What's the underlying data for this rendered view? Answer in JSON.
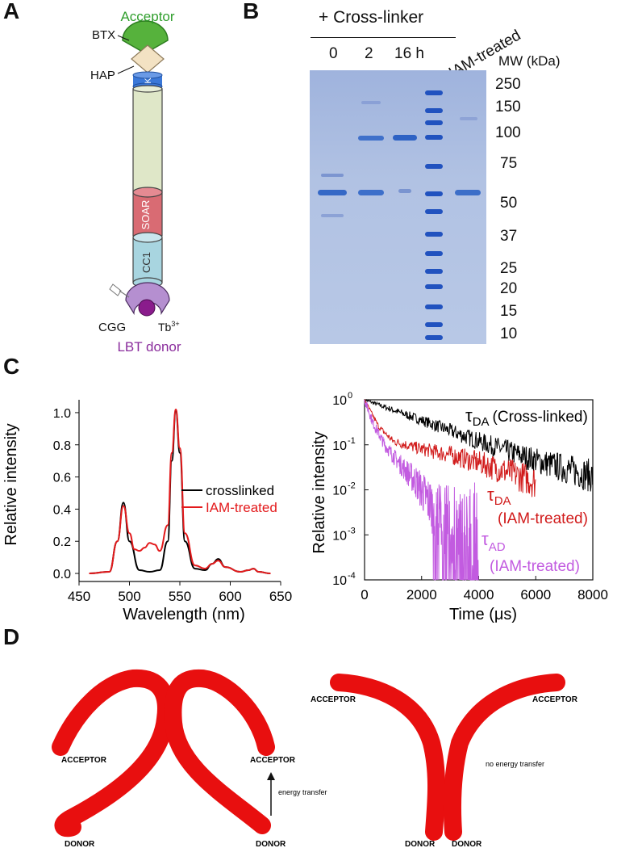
{
  "panels": {
    "a": "A",
    "b": "B",
    "c": "C",
    "d": "D"
  },
  "panel_a": {
    "acceptor_label": "Acceptor",
    "btx_label": "BTX",
    "hap_label": "HAP",
    "k_label": "K",
    "soar_label": "SOAR",
    "cc1_label": "CC1",
    "cgg_label": "CGG",
    "tb_label": "Tb",
    "tb_superscript": "3+",
    "donor_label": "LBT donor",
    "colors": {
      "acceptor": "#4caf3a",
      "donor": "#8a2c9c",
      "soar": "#d96b73",
      "cc1": "#a8d5e0",
      "body": "#dfe7c8"
    }
  },
  "panel_b": {
    "crosslinker_label": "+ Cross-linker",
    "lanes": [
      "0",
      "2",
      "16 h"
    ],
    "iam_label": "IAM-treated",
    "mw_header": "MW (kDa)",
    "mw_markers": [
      "250",
      "150",
      "100",
      "75",
      "50",
      "37",
      "25",
      "20",
      "15",
      "10"
    ]
  },
  "panel_c": {
    "left": {
      "ylabel": "Relative intensity",
      "xlabel": "Wavelength (nm)",
      "xticks": [
        "450",
        "500",
        "550",
        "600",
        "650"
      ],
      "yticks": [
        "0.0",
        "0.2",
        "0.4",
        "0.6",
        "0.8",
        "1.0"
      ],
      "legend": [
        "crosslinked",
        "IAM-treated"
      ]
    },
    "right": {
      "ylabel": "Relative intensity",
      "xlabel": "Time (μs)",
      "xticks": [
        "0",
        "2000",
        "4000",
        "6000",
        "8000"
      ],
      "ytick_base": "10",
      "ytick_exponents": [
        "0",
        "-1",
        "-2",
        "-3",
        "-4"
      ],
      "tau_symbol": "τ",
      "label_crosslinked_sub": "DA",
      "label_crosslinked": "(Cross-linked)",
      "label_iam_da_sub": "DA",
      "label_iam_da": "(IAM-treated)",
      "label_iam_ad_sub": "AD",
      "label_iam_ad": "(IAM-treated)"
    }
  },
  "panel_d": {
    "acceptor": "ACCEPTOR",
    "donor": "DONOR",
    "energy_transfer": "energy transfer",
    "no_energy_transfer": "no energy transfer"
  },
  "chart_data": [
    {
      "type": "line",
      "title": "",
      "xlabel": "Wavelength (nm)",
      "ylabel": "Relative intensity",
      "xlim": [
        450,
        650
      ],
      "ylim": [
        -0.05,
        1.08
      ],
      "series": [
        {
          "name": "crosslinked",
          "color": "#000000",
          "x": [
            460,
            480,
            488,
            494,
            500,
            510,
            520,
            530,
            538,
            542,
            546,
            550,
            555,
            565,
            575,
            582,
            588,
            595,
            610,
            618,
            623,
            628,
            640
          ],
          "y": [
            0.0,
            0.01,
            0.2,
            0.44,
            0.2,
            0.02,
            0.01,
            0.02,
            0.2,
            0.7,
            1.01,
            0.75,
            0.2,
            0.03,
            0.02,
            0.06,
            0.09,
            0.04,
            0.01,
            0.02,
            0.03,
            0.01,
            0.0
          ]
        },
        {
          "name": "IAM-treated",
          "color": "#e31a1c",
          "x": [
            460,
            480,
            488,
            494,
            500,
            505,
            510,
            515,
            520,
            525,
            530,
            538,
            542,
            546,
            550,
            555,
            565,
            575,
            582,
            588,
            595,
            610,
            618,
            623,
            628,
            640
          ],
          "y": [
            0.0,
            0.01,
            0.2,
            0.42,
            0.25,
            0.15,
            0.14,
            0.16,
            0.19,
            0.18,
            0.14,
            0.3,
            0.75,
            1.02,
            0.78,
            0.25,
            0.05,
            0.03,
            0.06,
            0.08,
            0.04,
            0.01,
            0.02,
            0.03,
            0.01,
            0.0
          ]
        }
      ]
    },
    {
      "type": "line",
      "title": "",
      "xlabel": "Time (μs)",
      "ylabel": "Relative intensity",
      "yscale": "log",
      "xlim": [
        0,
        8000
      ],
      "ylim": [
        0.0001,
        1
      ],
      "series": [
        {
          "name": "τDA (Cross-linked)",
          "color": "#000000",
          "x": [
            0,
            2000,
            4000,
            6000,
            8000
          ],
          "y": [
            1.0,
            0.35,
            0.12,
            0.045,
            0.02
          ]
        },
        {
          "name": "τDA (IAM-treated)",
          "color": "#d11b1b",
          "x": [
            0,
            500,
            1000,
            2000,
            3000,
            4000,
            5000,
            6000
          ],
          "y": [
            1.0,
            0.25,
            0.12,
            0.08,
            0.06,
            0.04,
            0.025,
            0.015
          ]
        },
        {
          "name": "τAD (IAM-treated)",
          "color": "#c25be0",
          "x": [
            0,
            300,
            700,
            1200,
            1800,
            2400,
            3000,
            3600,
            4000
          ],
          "y": [
            1.0,
            0.3,
            0.1,
            0.04,
            0.015,
            0.004,
            0.0015,
            0.0006,
            0.0003
          ]
        }
      ]
    }
  ]
}
